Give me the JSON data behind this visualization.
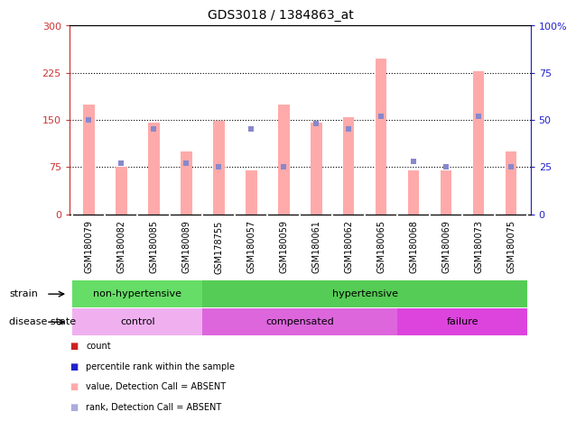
{
  "title": "GDS3018 / 1384863_at",
  "samples": [
    "GSM180079",
    "GSM180082",
    "GSM180085",
    "GSM180089",
    "GSM178755",
    "GSM180057",
    "GSM180059",
    "GSM180061",
    "GSM180062",
    "GSM180065",
    "GSM180068",
    "GSM180069",
    "GSM180073",
    "GSM180075"
  ],
  "values": [
    175,
    75,
    145,
    100,
    148,
    70,
    175,
    145,
    155,
    248,
    70,
    70,
    228,
    100
  ],
  "ranks": [
    50,
    27,
    45,
    27,
    25,
    45,
    25,
    48,
    45,
    52,
    28,
    25,
    52,
    25
  ],
  "strain_groups": [
    {
      "label": "non-hypertensive",
      "start": 0,
      "end": 4,
      "color": "#66dd66"
    },
    {
      "label": "hypertensive",
      "start": 4,
      "end": 14,
      "color": "#55cc55"
    }
  ],
  "disease_groups": [
    {
      "label": "control",
      "start": 0,
      "end": 4,
      "color": "#f0b0f0"
    },
    {
      "label": "compensated",
      "start": 4,
      "end": 10,
      "color": "#dd66dd"
    },
    {
      "label": "failure",
      "start": 10,
      "end": 14,
      "color": "#dd44dd"
    }
  ],
  "bar_color": "#ffaaaa",
  "square_color": "#8888cc",
  "left_axis_color": "#cc3333",
  "right_axis_color": "#2222cc",
  "left_ylim": [
    0,
    300
  ],
  "right_ylim": [
    0,
    100
  ],
  "left_yticks": [
    0,
    75,
    150,
    225,
    300
  ],
  "right_yticks": [
    0,
    25,
    50,
    75,
    100
  ],
  "right_yticklabels": [
    "0",
    "25",
    "50",
    "75",
    "100%"
  ],
  "grid_lines": [
    75,
    150,
    225
  ],
  "background_color": "#ffffff",
  "title_fontsize": 10,
  "tick_fontsize": 7,
  "label_fontsize": 8
}
